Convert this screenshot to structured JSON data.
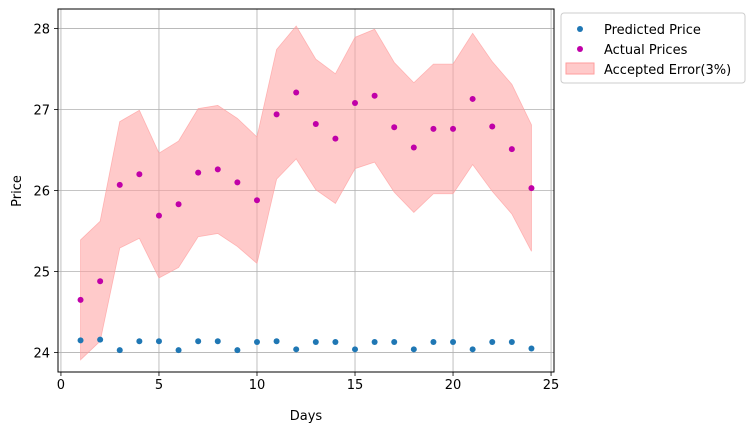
{
  "chart_data": {
    "type": "scatter",
    "title": "",
    "xlabel": "Days",
    "ylabel": "Price",
    "xlim": [
      -0.15,
      25.15
    ],
    "ylim": [
      23.76,
      28.24
    ],
    "xticks": [
      0,
      5,
      10,
      15,
      20,
      25
    ],
    "yticks": [
      24,
      25,
      26,
      27,
      28
    ],
    "grid": true,
    "legend_position": "outside upper right",
    "x": [
      1,
      2,
      3,
      4,
      5,
      6,
      7,
      8,
      9,
      10,
      11,
      12,
      13,
      14,
      15,
      16,
      17,
      18,
      19,
      20,
      21,
      22,
      23,
      24
    ],
    "series": [
      {
        "name": "Predicted Price",
        "kind": "scatter",
        "color": "#1f77b4",
        "values": [
          24.15,
          24.16,
          24.03,
          24.14,
          24.14,
          24.03,
          24.14,
          24.14,
          24.03,
          24.13,
          24.14,
          24.04,
          24.13,
          24.13,
          24.04,
          24.13,
          24.13,
          24.04,
          24.13,
          24.13,
          24.04,
          24.13,
          24.13,
          24.05
        ]
      },
      {
        "name": "Actual Prices",
        "kind": "scatter",
        "color": "#c000a8",
        "values": [
          24.65,
          24.88,
          26.07,
          26.2,
          25.69,
          25.83,
          26.22,
          26.26,
          26.1,
          25.88,
          26.94,
          27.21,
          26.82,
          26.64,
          27.08,
          27.17,
          26.78,
          26.53,
          26.76,
          26.76,
          27.13,
          26.79,
          26.51,
          26.03
        ]
      },
      {
        "name": "Accepted Error(3%)",
        "kind": "band",
        "color": "#ff9e9e",
        "lower": [
          23.91,
          24.14,
          25.29,
          25.41,
          24.92,
          25.05,
          25.43,
          25.47,
          25.31,
          25.1,
          26.14,
          26.39,
          26.01,
          25.84,
          26.27,
          26.35,
          25.98,
          25.73,
          25.96,
          25.96,
          26.32,
          25.99,
          25.71,
          25.25
        ],
        "upper": [
          25.39,
          25.62,
          26.85,
          26.99,
          26.46,
          26.61,
          27.01,
          27.05,
          26.89,
          26.66,
          27.74,
          28.03,
          27.62,
          27.44,
          27.89,
          27.99,
          27.58,
          27.33,
          27.56,
          27.56,
          27.94,
          27.59,
          27.31,
          26.81
        ]
      }
    ]
  }
}
